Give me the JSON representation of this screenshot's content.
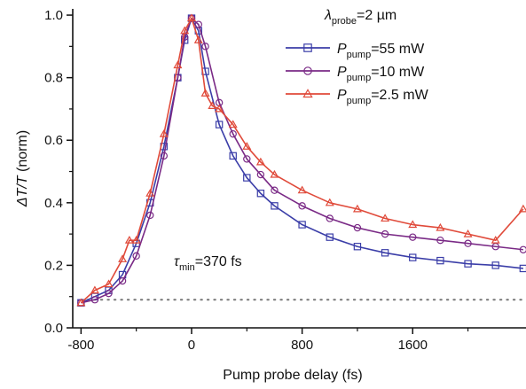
{
  "chart_data": {
    "type": "line",
    "xlabel": "Pump probe delay (fs)",
    "ylabel_main": "ΔT/T",
    "ylabel_suffix": " (norm)",
    "xlim": [
      -860,
      2420
    ],
    "ylim": [
      0.0,
      1.02
    ],
    "xticks": [
      -800,
      0,
      800,
      1600
    ],
    "xtick_labels": [
      "-800",
      "0",
      "800",
      "1600"
    ],
    "yticks": [
      0.0,
      0.2,
      0.4,
      0.6,
      0.8,
      1.0
    ],
    "ytick_labels": [
      "0.0",
      "0.2",
      "0.4",
      "0.6",
      "0.8",
      "1.0"
    ],
    "grid": false,
    "legend_position": "top-right",
    "legend_header": {
      "symbol": "λ",
      "subscript": "probe",
      "suffix": "=2 µm"
    },
    "annotation": {
      "symbol": "τ",
      "subscript": "min",
      "suffix": "=370 fs"
    },
    "baseline": {
      "y": 0.09,
      "style": "dotted"
    },
    "series": [
      {
        "name": "P_pump=55 mW",
        "legend": {
          "symbol": "P",
          "subscript": "pump",
          "suffix": "=55 mW"
        },
        "color": "#3b3ea8",
        "marker": "square",
        "x": [
          -800,
          -700,
          -600,
          -500,
          -400,
          -300,
          -200,
          -100,
          -50,
          0,
          50,
          100,
          200,
          300,
          400,
          500,
          600,
          800,
          1000,
          1200,
          1400,
          1600,
          1800,
          2000,
          2200,
          2400
        ],
        "y": [
          0.08,
          0.1,
          0.12,
          0.17,
          0.27,
          0.4,
          0.58,
          0.8,
          0.92,
          0.99,
          0.95,
          0.82,
          0.65,
          0.55,
          0.48,
          0.43,
          0.39,
          0.33,
          0.29,
          0.26,
          0.24,
          0.225,
          0.215,
          0.205,
          0.2,
          0.19
        ]
      },
      {
        "name": "P_pump=10 mW",
        "legend": {
          "symbol": "P",
          "subscript": "pump",
          "suffix": "=10 mW"
        },
        "color": "#7a2a86",
        "marker": "circle",
        "x": [
          -800,
          -700,
          -600,
          -500,
          -400,
          -300,
          -200,
          -100,
          -50,
          0,
          50,
          100,
          200,
          300,
          400,
          500,
          600,
          800,
          1000,
          1200,
          1400,
          1600,
          1800,
          2000,
          2200,
          2400
        ],
        "y": [
          0.08,
          0.09,
          0.11,
          0.15,
          0.23,
          0.36,
          0.55,
          0.8,
          0.93,
          0.99,
          0.97,
          0.9,
          0.72,
          0.62,
          0.54,
          0.49,
          0.44,
          0.39,
          0.35,
          0.32,
          0.3,
          0.29,
          0.28,
          0.27,
          0.26,
          0.25
        ]
      },
      {
        "name": "P_pump=2.5 mW",
        "legend": {
          "symbol": "P",
          "subscript": "pump",
          "suffix": "=2.5 mW"
        },
        "color": "#e04a3a",
        "marker": "triangle",
        "x": [
          -800,
          -700,
          -600,
          -500,
          -450,
          -400,
          -300,
          -200,
          -100,
          -50,
          0,
          50,
          100,
          150,
          200,
          300,
          400,
          500,
          600,
          800,
          1000,
          1200,
          1400,
          1600,
          1800,
          2000,
          2200,
          2400
        ],
        "y": [
          0.08,
          0.12,
          0.14,
          0.22,
          0.28,
          0.28,
          0.43,
          0.62,
          0.84,
          0.95,
          0.99,
          0.92,
          0.75,
          0.71,
          0.7,
          0.65,
          0.58,
          0.53,
          0.49,
          0.44,
          0.4,
          0.38,
          0.35,
          0.33,
          0.32,
          0.3,
          0.28,
          0.38
        ]
      }
    ]
  }
}
